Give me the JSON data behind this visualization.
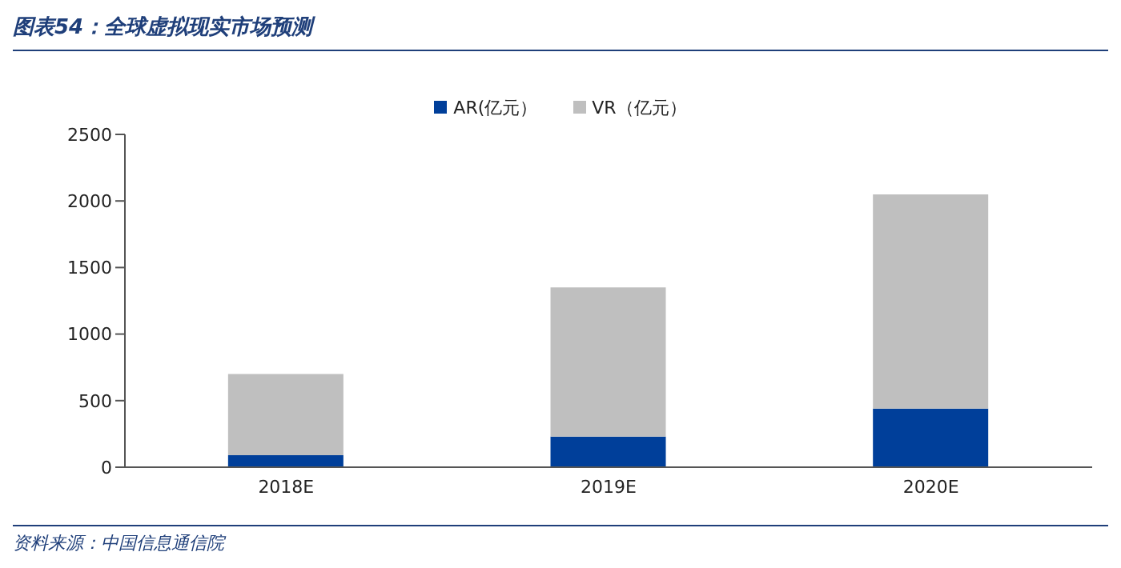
{
  "chart_data": {
    "type": "bar",
    "title": "图表54：全球虚拟现实市场预测",
    "categories": [
      "2018E",
      "2019E",
      "2020E"
    ],
    "stacked": true,
    "series": [
      {
        "name": "AR(亿元）",
        "color": "#003f9a",
        "values": [
          90,
          230,
          440
        ]
      },
      {
        "name": "VR（亿元）",
        "color": "#bfbfbf",
        "values": [
          610,
          1120,
          1610
        ]
      }
    ],
    "ylim": [
      0,
      2500
    ],
    "yticks": [
      0,
      500,
      1000,
      1500,
      2000,
      2500
    ],
    "grid": false,
    "legend": "top",
    "annotations": [
      "资料来源：中国信息通信院"
    ]
  }
}
